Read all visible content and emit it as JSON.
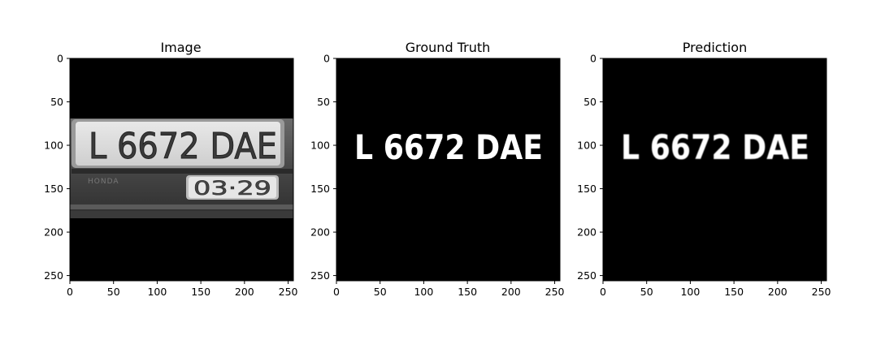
{
  "figure": {
    "panels": [
      {
        "title": "Image",
        "kind": "photo",
        "plate_text": "L 6672 DAE",
        "small_plate_text": "03·29",
        "brand_text": "HONDA",
        "x_ticks": [
          "0",
          "50",
          "100",
          "150",
          "200",
          "250"
        ],
        "y_ticks": [
          "0",
          "50",
          "100",
          "150",
          "200",
          "250"
        ]
      },
      {
        "title": "Ground Truth",
        "kind": "mask",
        "plate_text": "L 6672 DAE",
        "x_ticks": [
          "0",
          "50",
          "100",
          "150",
          "200",
          "250"
        ],
        "y_ticks": [
          "0",
          "50",
          "100",
          "150",
          "200",
          "250"
        ]
      },
      {
        "title": "Prediction",
        "kind": "mask",
        "plate_text": "L 6672 DAE",
        "x_ticks": [
          "0",
          "50",
          "100",
          "150",
          "200",
          "250"
        ],
        "y_ticks": [
          "0",
          "50",
          "100",
          "150",
          "200",
          "250"
        ]
      }
    ]
  },
  "colors": {
    "background": "#000000",
    "mask_foreground": "#ffffff",
    "plate_face": "#f0f0f0",
    "plate_body": "#4a4a4a"
  }
}
